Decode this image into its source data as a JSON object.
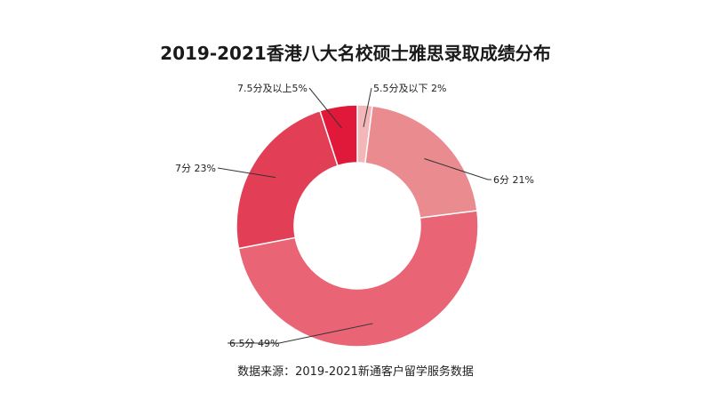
{
  "chart_data": {
    "type": "pie",
    "variant": "donut",
    "title": "2019-2021香港八大名校硕士雅思录取成绩分布",
    "slices": [
      {
        "label": "5.5分及以下",
        "value": 2,
        "display": "5.5分及以下 2%",
        "color": "#f3b7b9"
      },
      {
        "label": "6分",
        "value": 21,
        "display": "6分 21%",
        "color": "#e98b8f"
      },
      {
        "label": "6.5分",
        "value": 49,
        "display": "6.5分 49%",
        "color": "#e96474"
      },
      {
        "label": "7分",
        "value": 23,
        "display": "7分 23%",
        "color": "#e23f57"
      },
      {
        "label": "7.5分及以上",
        "value": 5,
        "display": "7.5分及以上5%",
        "color": "#e0193a"
      }
    ],
    "legend": "none",
    "source": "数据来源：2019-2021新通客户留学服务数据"
  }
}
